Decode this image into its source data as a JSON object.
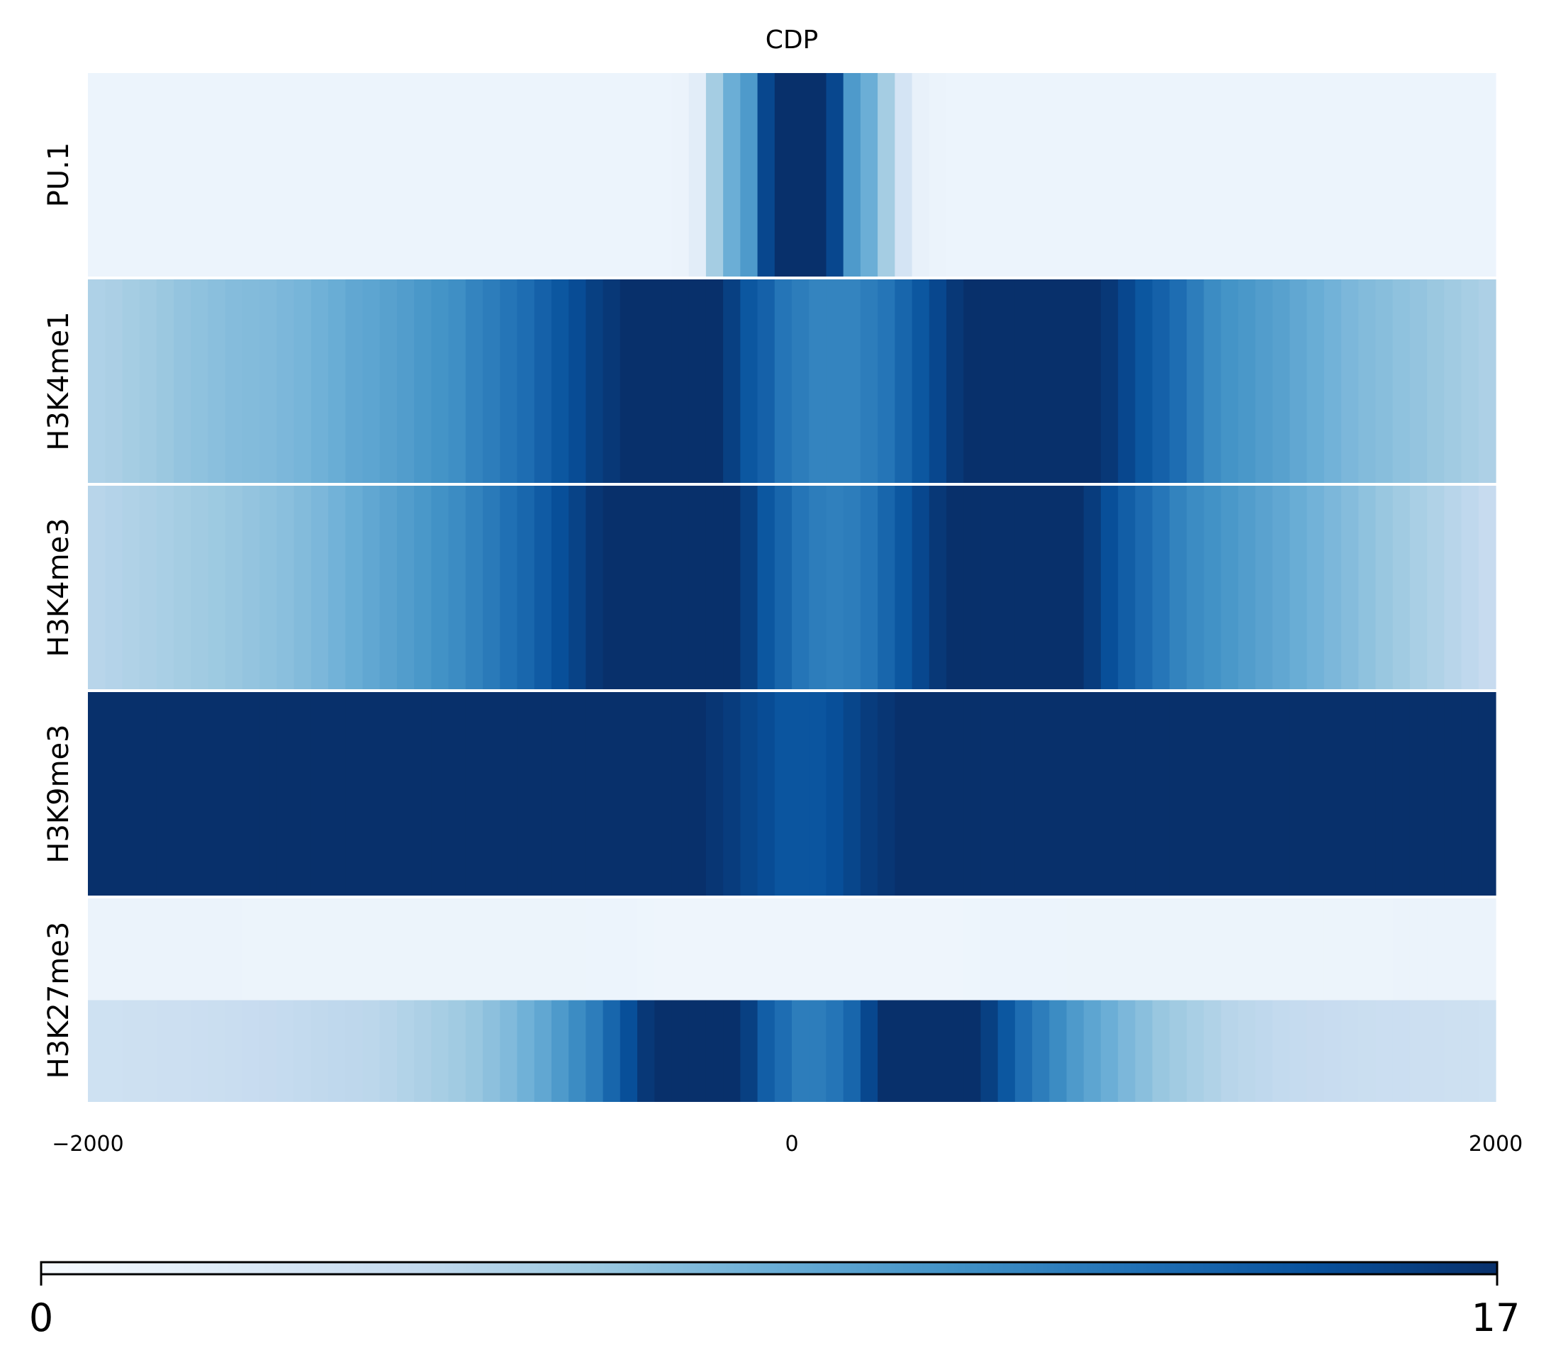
{
  "chart_data": {
    "type": "heatmap",
    "title": "CDP",
    "colormap": "Blues",
    "color_range": [
      0,
      17
    ],
    "colorbar": {
      "min_label": "0",
      "max_label": "17"
    },
    "x_ticks": [
      "−2000",
      "0",
      "2000"
    ],
    "xlim": [
      -2000,
      2000
    ],
    "rows": [
      {
        "label": "PU.1",
        "subrows": [
          {
            "values": [
              0.9,
              0.9,
              0.9,
              0.9,
              0.9,
              0.9,
              0.9,
              0.9,
              0.9,
              0.9,
              0.9,
              0.9,
              0.9,
              0.9,
              0.9,
              0.9,
              0.9,
              0.9,
              0.9,
              0.9,
              0.9,
              0.9,
              0.9,
              0.9,
              0.9,
              0.9,
              0.9,
              0.9,
              0.9,
              0.9,
              0.9,
              0.9,
              0.9,
              0.9,
              1.0,
              1.8,
              6.0,
              8.5,
              10.0,
              15.5,
              17,
              17,
              17,
              15.5,
              10.0,
              8.5,
              6.0,
              3.0,
              1.3,
              1.0,
              0.9,
              0.9,
              0.9,
              0.9,
              0.9,
              0.9,
              0.9,
              0.9,
              0.9,
              0.9,
              0.9,
              0.9,
              0.9,
              0.9,
              0.9,
              0.9,
              0.9,
              0.9,
              0.9,
              0.9,
              0.9,
              0.9,
              0.9,
              0.9,
              0.9,
              0.9,
              0.9,
              0.9,
              0.9,
              0.9,
              0.9,
              0.9
            ]
          }
        ]
      },
      {
        "label": "H3K4me1",
        "subrows": [
          {
            "values": [
              5.5,
              5.7,
              6.0,
              6.2,
              6.5,
              6.8,
              7.0,
              7.2,
              7.4,
              7.5,
              7.6,
              7.8,
              8.0,
              8.3,
              8.6,
              9.0,
              9.2,
              9.5,
              9.8,
              10.2,
              10.5,
              10.8,
              11.5,
              12.0,
              12.5,
              13.0,
              13.8,
              14.5,
              15.2,
              16.0,
              16.5,
              17,
              17,
              17,
              17,
              17,
              17,
              16.0,
              14.5,
              13.8,
              12.5,
              12.0,
              11.5,
              11.5,
              11.5,
              12.0,
              12.5,
              13.5,
              14.5,
              15.5,
              16.5,
              17,
              17,
              17,
              17,
              17,
              17,
              17,
              17,
              16.5,
              15.5,
              14.5,
              13.8,
              13.0,
              12.0,
              11.0,
              10.5,
              10.2,
              9.8,
              9.5,
              9.0,
              8.6,
              8.2,
              7.8,
              7.5,
              7.3,
              7.0,
              6.8,
              6.5,
              6.2,
              5.9,
              5.6
            ]
          }
        ]
      },
      {
        "label": "H3K4me3",
        "subrows": [
          {
            "values": [
              5.0,
              5.2,
              5.4,
              5.6,
              5.8,
              6.0,
              6.2,
              6.4,
              6.6,
              6.8,
              7.0,
              7.2,
              7.5,
              7.8,
              8.2,
              8.6,
              9.0,
              9.4,
              9.8,
              10.2,
              10.6,
              11.0,
              11.6,
              12.2,
              12.8,
              13.4,
              14.2,
              15.0,
              15.8,
              16.6,
              17,
              17,
              17,
              17,
              17,
              17,
              17,
              17,
              16.0,
              14.5,
              13.5,
              12.5,
              12.0,
              11.8,
              12.0,
              12.5,
              13.5,
              14.5,
              15.5,
              16.5,
              17,
              17,
              17,
              17,
              17,
              17,
              17,
              17,
              16.2,
              15.0,
              14.0,
              13.2,
              12.4,
              11.6,
              11.0,
              10.6,
              10.2,
              9.8,
              9.4,
              9.0,
              8.6,
              8.2,
              7.8,
              7.4,
              7.0,
              6.6,
              6.2,
              5.8,
              5.4,
              5.0,
              4.6,
              4.2
            ]
          }
        ]
      },
      {
        "label": "H3K9me3",
        "subrows": [
          {
            "values": [
              17,
              17,
              17,
              17,
              17,
              17,
              17,
              17,
              17,
              17,
              17,
              17,
              17,
              17,
              17,
              17,
              17,
              17,
              17,
              17,
              17,
              17,
              17,
              17,
              17,
              17,
              17,
              17,
              17,
              17,
              17,
              17,
              17,
              17,
              17,
              17,
              16.6,
              16.2,
              15.6,
              15.2,
              14.6,
              14.6,
              14.6,
              15.0,
              15.6,
              16.2,
              16.6,
              17,
              17,
              17,
              17,
              17,
              17,
              17,
              17,
              17,
              17,
              17,
              17,
              17,
              17,
              17,
              17,
              17,
              17,
              17,
              17,
              17,
              17,
              17,
              17,
              17,
              17,
              17,
              17,
              17,
              17,
              17,
              17,
              17,
              17,
              17
            ]
          }
        ]
      },
      {
        "label": "H3K27me3",
        "subrows": [
          {
            "values": [
              1.0,
              1.0,
              1.0,
              1.0,
              1.0,
              1.0,
              1.0,
              1.0,
              1.0,
              0.95,
              0.95,
              0.95,
              0.95,
              0.95,
              0.95,
              0.95,
              0.95,
              0.95,
              0.95,
              0.95,
              0.95,
              0.95,
              0.95,
              0.95,
              0.95,
              0.95,
              0.95,
              0.95,
              0.95,
              0.9,
              0.9,
              0.9,
              0.85,
              0.8,
              0.8,
              0.8,
              0.8,
              0.8,
              0.8,
              0.8,
              0.8,
              0.8,
              0.8,
              0.8,
              0.8,
              0.8,
              0.8,
              0.8,
              0.8,
              0.8,
              0.8,
              0.85,
              0.9,
              0.9,
              0.9,
              0.9,
              0.9,
              0.95,
              0.95,
              0.95,
              0.95,
              0.95,
              0.95,
              0.95,
              0.95,
              0.95,
              0.95,
              0.95,
              0.95,
              0.95,
              0.95,
              0.95,
              0.95,
              0.95,
              0.95,
              0.95,
              1.0,
              1.0,
              1.0,
              1.0,
              1.0,
              1.0
            ]
          },
          {
            "values": [
              3.5,
              3.5,
              3.6,
              3.6,
              3.7,
              3.7,
              3.8,
              3.9,
              4.0,
              4.1,
              4.2,
              4.3,
              4.4,
              4.5,
              4.6,
              4.7,
              4.8,
              5.0,
              5.3,
              5.6,
              5.9,
              6.2,
              6.6,
              7.1,
              7.6,
              8.3,
              9.0,
              10.0,
              11.0,
              12.0,
              13.5,
              15.0,
              16.5,
              17,
              17,
              17,
              17,
              17,
              16.0,
              14.0,
              13.0,
              12.0,
              12.0,
              12.5,
              13.5,
              15.5,
              17,
              17,
              17,
              17,
              17,
              17,
              16.0,
              14.5,
              13.0,
              12.0,
              11.0,
              10.0,
              9.2,
              8.5,
              7.8,
              7.2,
              6.6,
              6.2,
              5.8,
              5.4,
              5.0,
              4.8,
              4.6,
              4.4,
              4.3,
              4.2,
              4.1,
              4.0,
              3.9,
              3.8,
              3.8,
              3.7,
              3.7,
              3.6,
              3.6,
              3.5
            ]
          }
        ]
      }
    ]
  }
}
